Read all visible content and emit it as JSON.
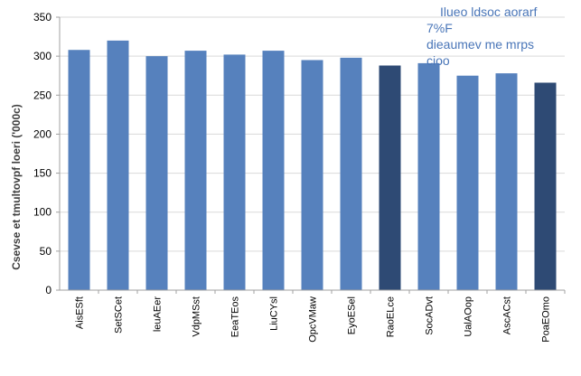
{
  "chart_data": {
    "type": "bar",
    "title": "",
    "xlabel": "",
    "ylabel": "Csevse et tmultovpf loeri ('000c)",
    "ylim": [
      0,
      350
    ],
    "yticks": [
      0,
      50,
      100,
      150,
      200,
      250,
      300,
      350
    ],
    "grid": true,
    "legend": "none",
    "categories": [
      "AisESft",
      "SetSCet",
      "leuAEer",
      "VdpMSst",
      "EeaTEos",
      "LiuCYsl",
      "OpcVMaw",
      "EyoESel",
      "RaoELce",
      "SocADvt",
      "UalAOop",
      "AscACst",
      "PoaEOmo"
    ],
    "values": [
      308,
      320,
      300,
      307,
      302,
      307,
      295,
      298,
      288,
      291,
      275,
      278,
      266
    ],
    "highlighted": [
      false,
      false,
      false,
      false,
      false,
      false,
      false,
      false,
      true,
      false,
      false,
      false,
      true
    ],
    "colors": {
      "bar": "#5681bd",
      "bar_highlight": "#2e4a74",
      "grid": "#d9d9d9",
      "axis": "#a0a0a0",
      "annotation": "#4a76b8"
    },
    "annotation": [
      "Ilueo ldsoc aorarf",
      "7%F",
      "dieaumev me mrps",
      "cioo"
    ]
  }
}
